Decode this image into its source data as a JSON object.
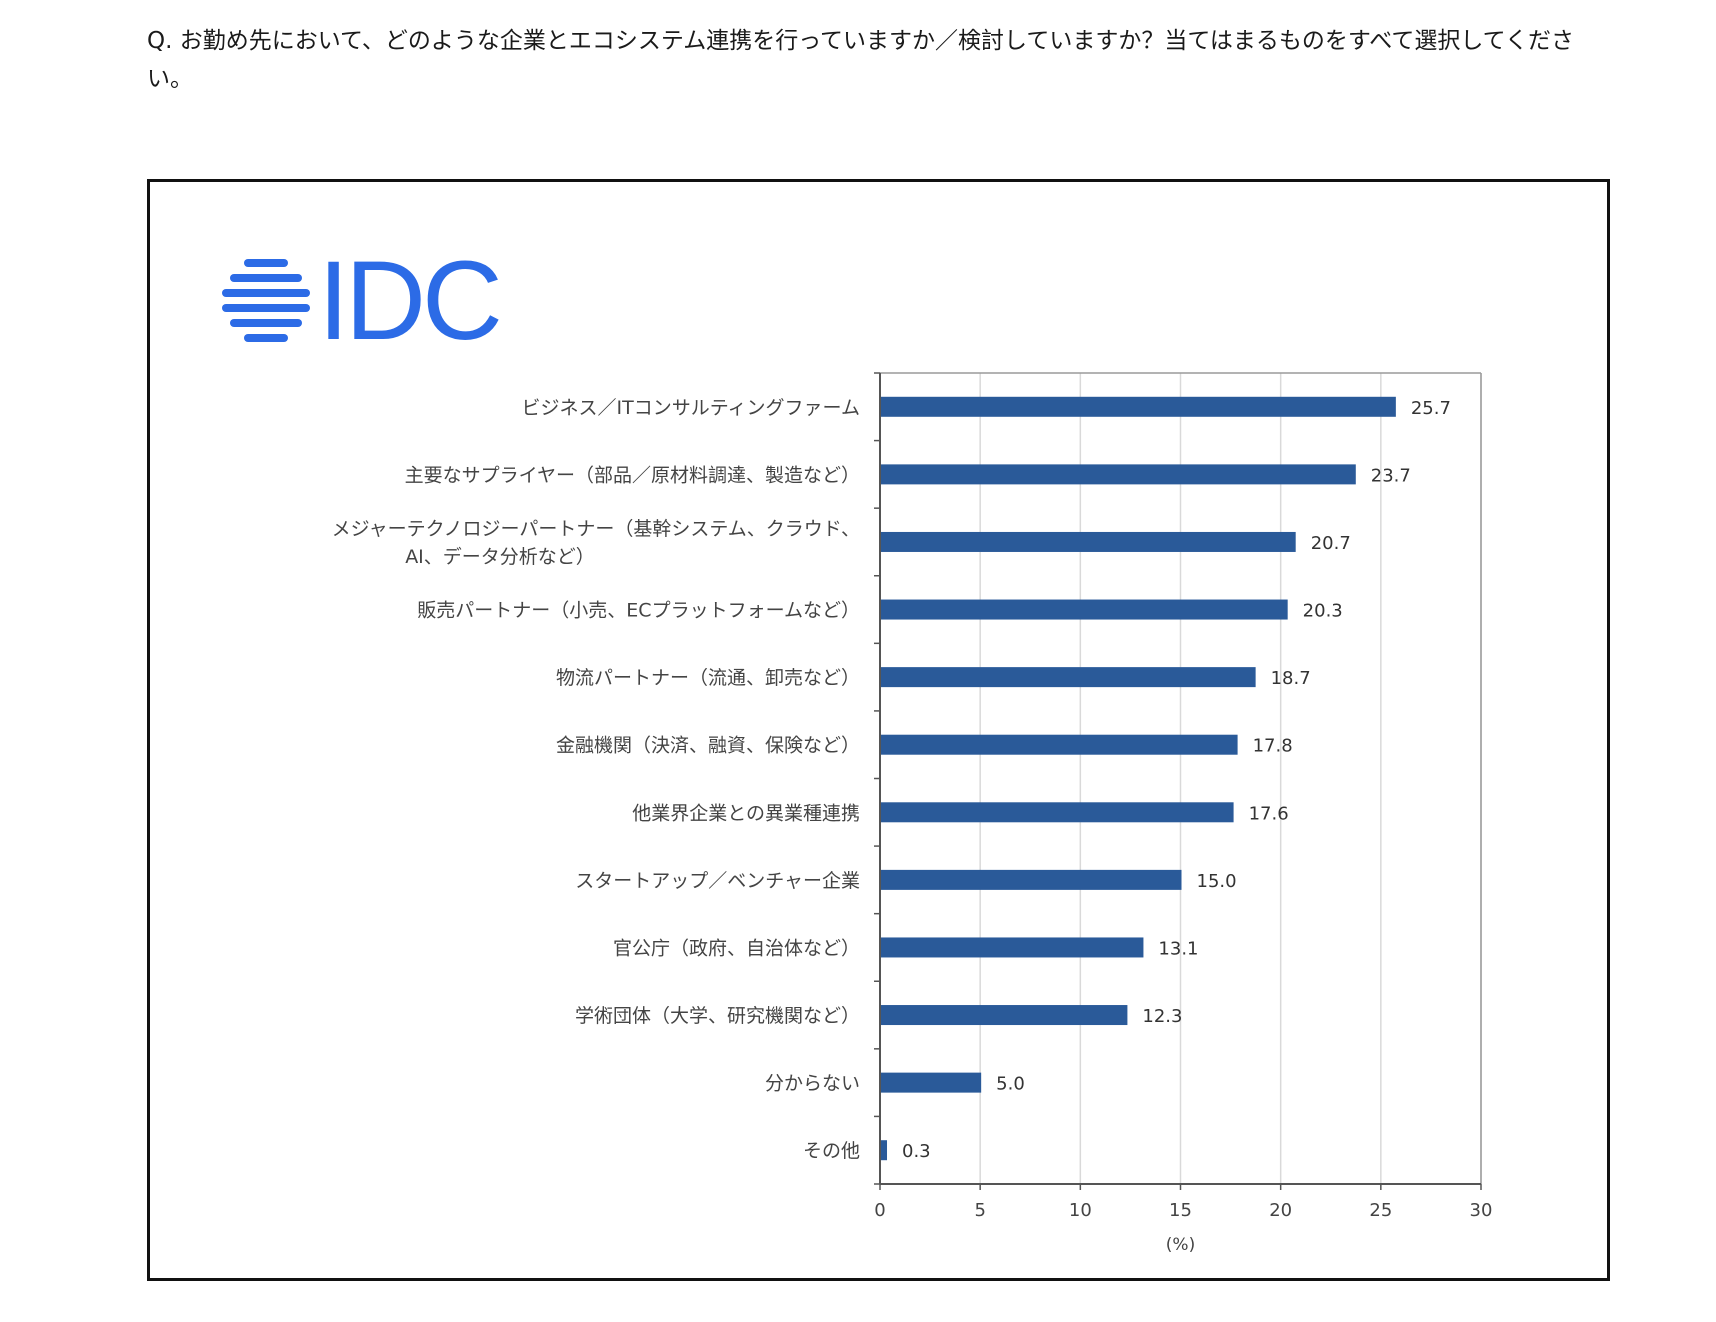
{
  "question": "Q. お勤め先において、どのような企業とエコシステム連携を行っていますか／検討していますか？当てはまるものをすべて選択してください。",
  "logo": {
    "text": "IDC",
    "color": "#2c6be6"
  },
  "chart_data": {
    "type": "bar",
    "orientation": "horizontal",
    "categories": [
      "ビジネス／ITコンサルティングファーム",
      "主要なサプライヤー（部品／原材料調達、製造など）",
      "メジャーテクノロジーパートナー（基幹システム、クラウド、AI、データ分析など）",
      "販売パートナー（小売、ECプラットフォームなど）",
      "物流パートナー（流通、卸売など）",
      "金融機関（決済、融資、保険など）",
      "他業界企業との異業種連携",
      "スタートアップ／ベンチャー企業",
      "官公庁（政府、自治体など）",
      "学術団体（大学、研究機関など）",
      "分からない",
      "その他"
    ],
    "category_lines": [
      [
        "ビジネス／ITコンサルティングファーム"
      ],
      [
        "主要なサプライヤー（部品／原材料調達、製造など）"
      ],
      [
        "メジャーテクノロジーパートナー（基幹システム、クラウド、",
        "AI、データ分析など）"
      ],
      [
        "販売パートナー（小売、ECプラットフォームなど）"
      ],
      [
        "物流パートナー（流通、卸売など）"
      ],
      [
        "金融機関（決済、融資、保険など）"
      ],
      [
        "他業界企業との異業種連携"
      ],
      [
        "スタートアップ／ベンチャー企業"
      ],
      [
        "官公庁（政府、自治体など）"
      ],
      [
        "学術団体（大学、研究機関など）"
      ],
      [
        "分からない"
      ],
      [
        "その他"
      ]
    ],
    "values": [
      25.7,
      23.7,
      20.7,
      20.3,
      18.7,
      17.8,
      17.6,
      15.0,
      13.1,
      12.3,
      5.0,
      0.3
    ],
    "value_labels": [
      "25.7",
      "23.7",
      "20.7",
      "20.3",
      "18.7",
      "17.8",
      "17.6",
      "15.0",
      "13.1",
      "12.3",
      "5.0",
      "0.3"
    ],
    "xlim": [
      0,
      30
    ],
    "xticks": [
      0,
      5,
      10,
      15,
      20,
      25,
      30
    ],
    "xlabel": "(%)",
    "bar_color": "#2a5a99",
    "grid_color": "#d9d9d9",
    "grid": true
  }
}
